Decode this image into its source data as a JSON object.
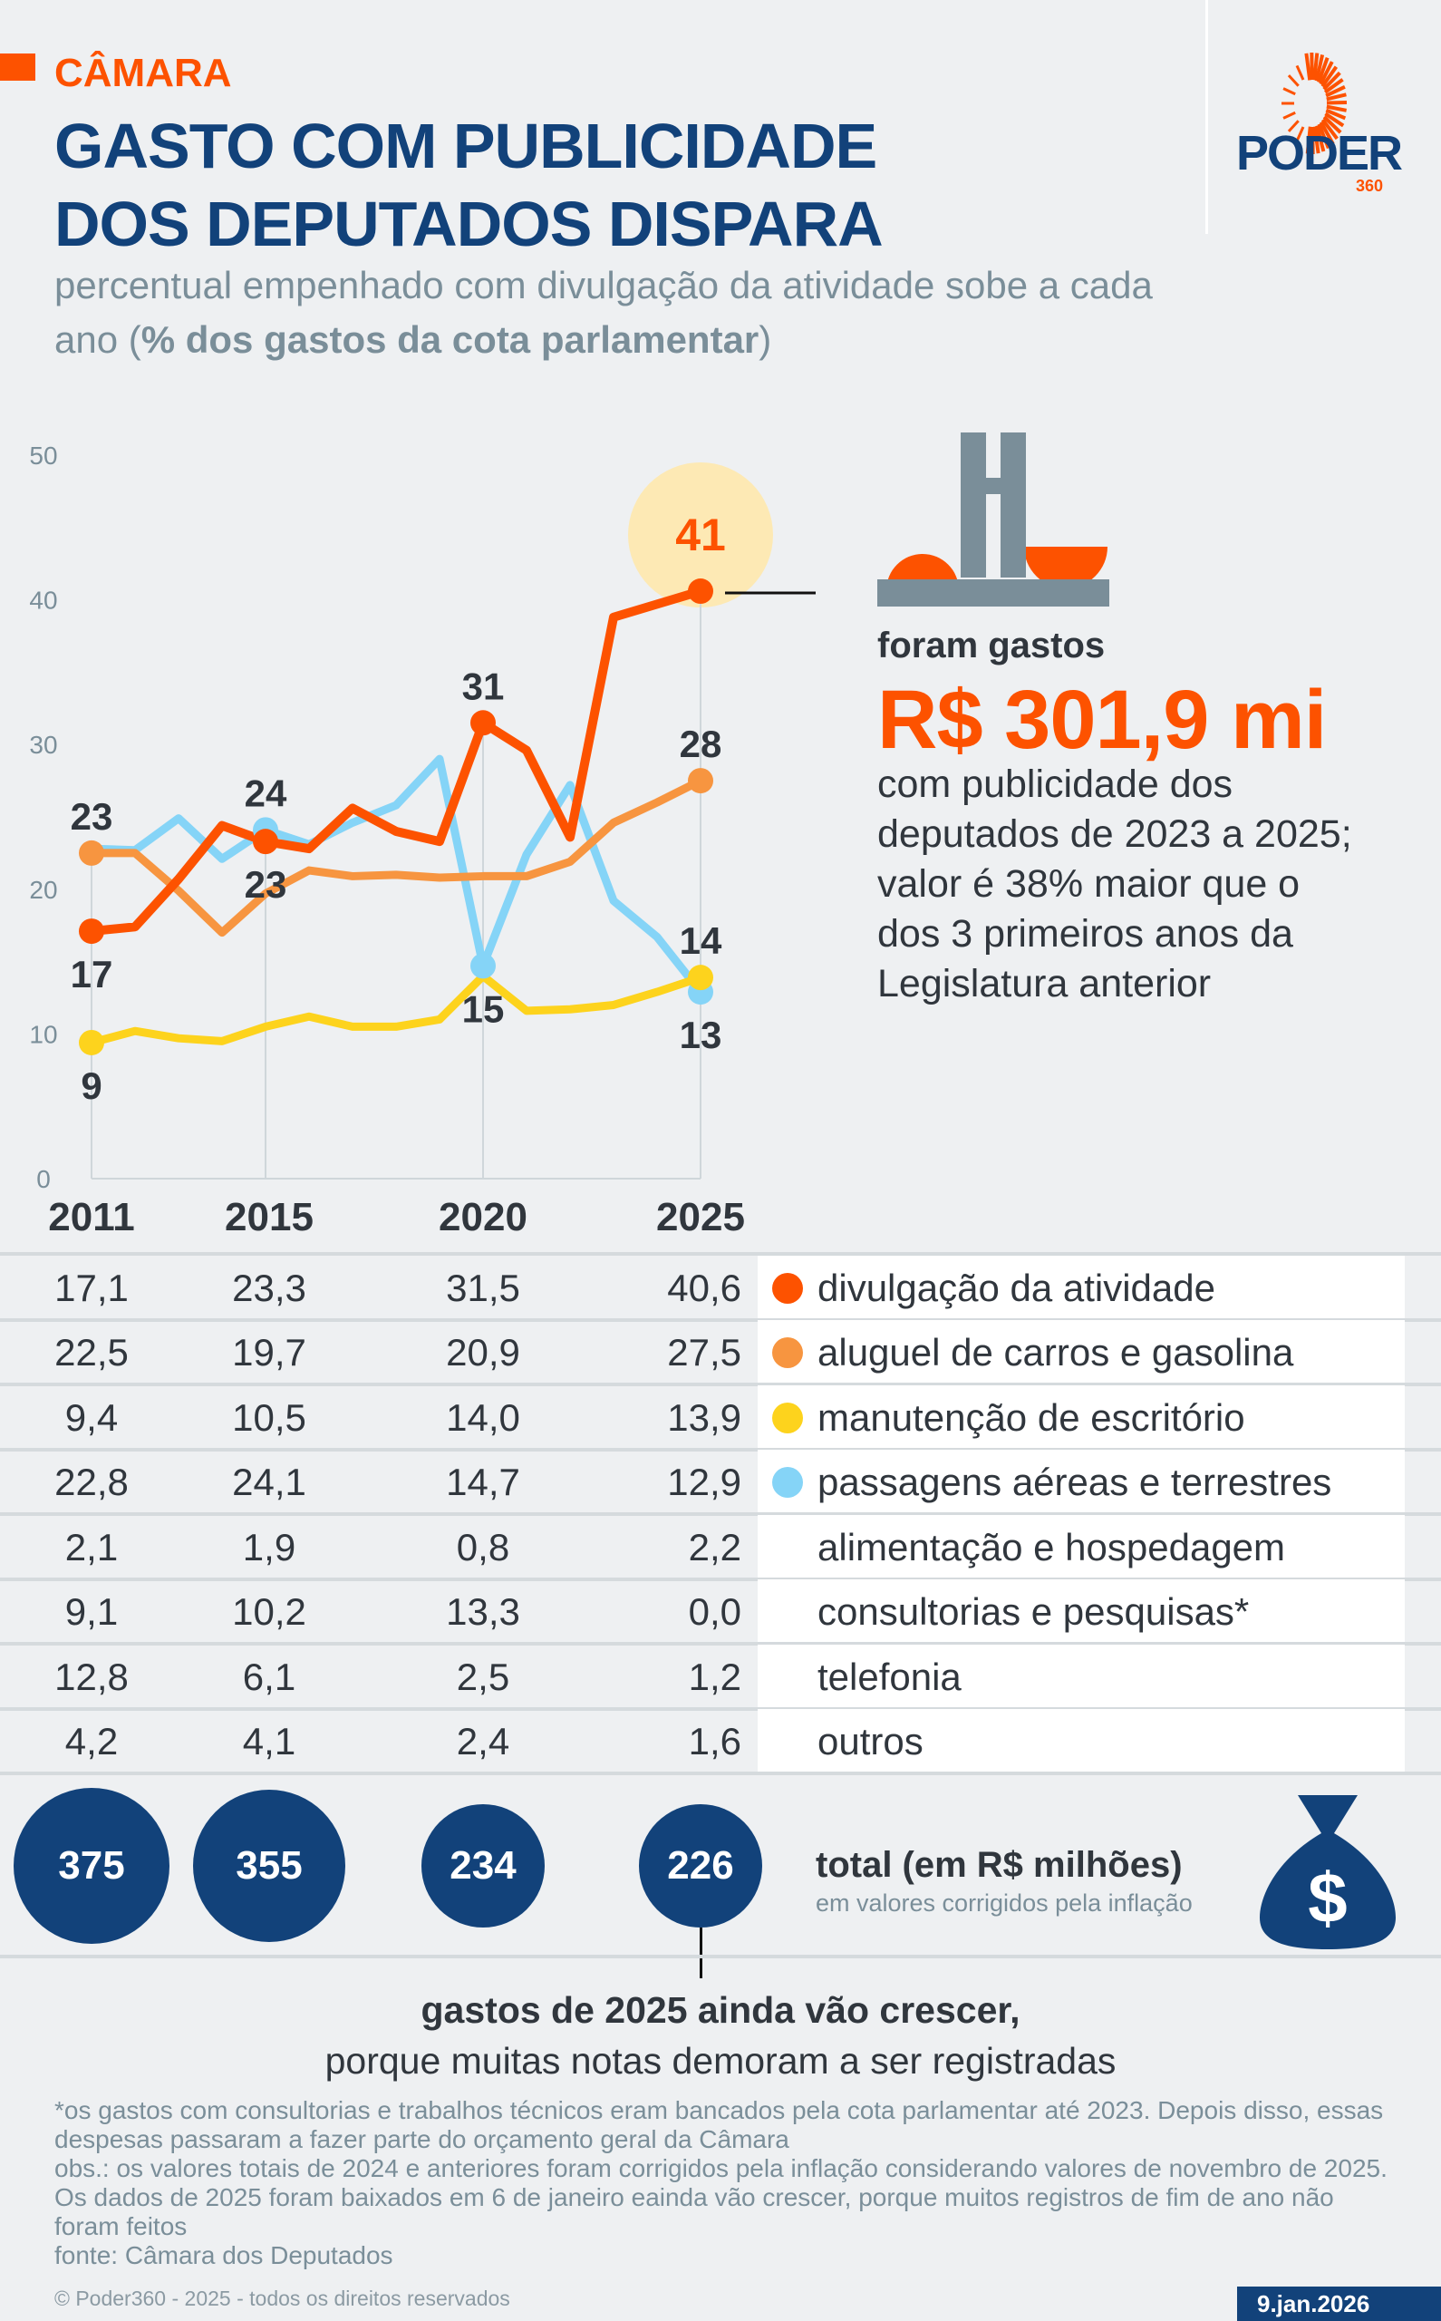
{
  "header": {
    "kicker": "CÂMARA",
    "title_line1": "GASTO COM PUBLICIDADE",
    "title_line2": "DOS DEPUTADOS DISPARA",
    "subtitle_plain": "percentual empenhado com divulgação da atividade sobe a cada ano (",
    "subtitle_bold": "% dos gastos da cota parlamentar",
    "subtitle_end": ")"
  },
  "logo": {
    "word": "PODER",
    "number": "360"
  },
  "colors": {
    "navy": "#12427a",
    "red_orange": "#fd5200",
    "orange": "#f79540",
    "yellow": "#fdd31d",
    "light_blue": "#85d4f7",
    "highlight": "#fde9b4",
    "gray": "#7a8e99"
  },
  "chart_data": {
    "type": "line",
    "x": [
      2011,
      2012,
      2013,
      2014,
      2015,
      2016,
      2017,
      2018,
      2019,
      2020,
      2021,
      2022,
      2023,
      2024,
      2025
    ],
    "x_tick_labels": [
      "2011",
      "2015",
      "2020",
      "2025"
    ],
    "y_ticks": [
      "0",
      "10",
      "20",
      "30",
      "40",
      "50"
    ],
    "ylim": [
      0,
      50
    ],
    "grid": "vertical lines at labeled years",
    "series": [
      {
        "name": "divulgação da atividade",
        "color": "#fd5200",
        "values": [
          17.1,
          17.4,
          20.7,
          24.4,
          23.3,
          22.8,
          25.6,
          24.0,
          23.3,
          31.5,
          29.6,
          23.6,
          38.8,
          39.7,
          40.6
        ]
      },
      {
        "name": "aluguel de carros e gasolina",
        "color": "#f79540",
        "values": [
          22.5,
          22.5,
          19.9,
          17.0,
          19.7,
          21.3,
          20.9,
          21.0,
          20.8,
          20.9,
          20.9,
          21.9,
          24.6,
          26.0,
          27.5
        ]
      },
      {
        "name": "manutenção de escritório",
        "color": "#fdd31d",
        "values": [
          9.4,
          10.2,
          9.7,
          9.5,
          10.5,
          11.2,
          10.5,
          10.5,
          11.0,
          14.0,
          11.6,
          11.7,
          12.0,
          12.9,
          13.9
        ]
      },
      {
        "name": "passagens aéreas e terrestres",
        "color": "#85d4f7",
        "values": [
          22.8,
          22.7,
          24.9,
          22.1,
          24.1,
          23.1,
          24.6,
          25.8,
          29.0,
          14.7,
          22.4,
          27.2,
          19.2,
          16.7,
          12.9
        ]
      }
    ],
    "data_labels": [
      {
        "series": 0,
        "year": 2011,
        "text": "17",
        "place": "below"
      },
      {
        "series": 0,
        "year": 2015,
        "text": "23",
        "place": "below"
      },
      {
        "series": 0,
        "year": 2020,
        "text": "31",
        "place": "above"
      },
      {
        "series": 0,
        "year": 2025,
        "text": "41",
        "place": "above",
        "highlight": true
      },
      {
        "series": 1,
        "year": 2011,
        "text": "23",
        "place": "above"
      },
      {
        "series": 1,
        "year": 2025,
        "text": "28",
        "place": "above"
      },
      {
        "series": 2,
        "year": 2011,
        "text": "9",
        "place": "below"
      },
      {
        "series": 2,
        "year": 2025,
        "text": "14",
        "place": "above"
      },
      {
        "series": 3,
        "year": 2015,
        "text": "24",
        "place": "above"
      },
      {
        "series": 3,
        "year": 2020,
        "text": "15",
        "place": "below"
      },
      {
        "series": 3,
        "year": 2025,
        "text": "13",
        "place": "below"
      }
    ]
  },
  "callout": {
    "lead": "foram gastos",
    "amount": "R$ 301,9 mi",
    "lines": [
      "com publicidade dos",
      "deputados de 2023 a 2025;",
      "valor é 38% maior que o",
      "dos 3 primeiros anos da",
      "Legislatura anterior"
    ]
  },
  "table": {
    "years": [
      "2011",
      "2015",
      "2020",
      "2025"
    ],
    "rows": [
      {
        "label": "divulgação da atividade",
        "values": [
          "17,1",
          "23,3",
          "31,5",
          "40,6"
        ],
        "dot": "#fd5200"
      },
      {
        "label": "aluguel de carros e gasolina",
        "values": [
          "22,5",
          "19,7",
          "20,9",
          "27,5"
        ],
        "dot": "#f79540"
      },
      {
        "label": "manutenção de escritório",
        "values": [
          "9,4",
          "10,5",
          "14,0",
          "13,9"
        ],
        "dot": "#fdd31d"
      },
      {
        "label": "passagens aéreas e terrestres",
        "values": [
          "22,8",
          "24,1",
          "14,7",
          "12,9"
        ],
        "dot": "#85d4f7"
      },
      {
        "label": "alimentação e hospedagem",
        "values": [
          "2,1",
          "1,9",
          "0,8",
          "2,2"
        ]
      },
      {
        "label": "consultorias e pesquisas*",
        "values": [
          "9,1",
          "10,2",
          "13,3",
          "0,0"
        ]
      },
      {
        "label": "telefonia",
        "values": [
          "12,8",
          "6,1",
          "2,5",
          "1,2"
        ]
      },
      {
        "label": "outros",
        "values": [
          "4,2",
          "4,1",
          "2,4",
          "1,6"
        ]
      }
    ]
  },
  "totals": {
    "values": [
      "375",
      "355",
      "234",
      "226"
    ],
    "title": "total (em R$ milhões)",
    "subtitle": "em valores corrigidos pela inflação"
  },
  "note": {
    "line1": "gastos de 2025 ainda vão crescer,",
    "line2": "porque muitas notas demoram a ser registradas"
  },
  "footer": {
    "lines": [
      "*os gastos com consultorias e trabalhos técnicos eram bancados pela cota parlamentar até 2023. Depois disso, essas despesas passaram a fazer parte do orçamento geral da Câmara",
      "obs.: os valores totais de 2024 e anteriores foram corrigidos pela inflação considerando valores de novembro de 2025. Os dados de 2025 foram baixados em 6 de janeiro eainda vão crescer, porque muitos registros de fim de ano não foram feitos",
      "fonte: Câmara dos Deputados"
    ],
    "copyright": "© Poder360 - 2025 - todos os direitos reservados",
    "date": "9.jan.2026"
  }
}
